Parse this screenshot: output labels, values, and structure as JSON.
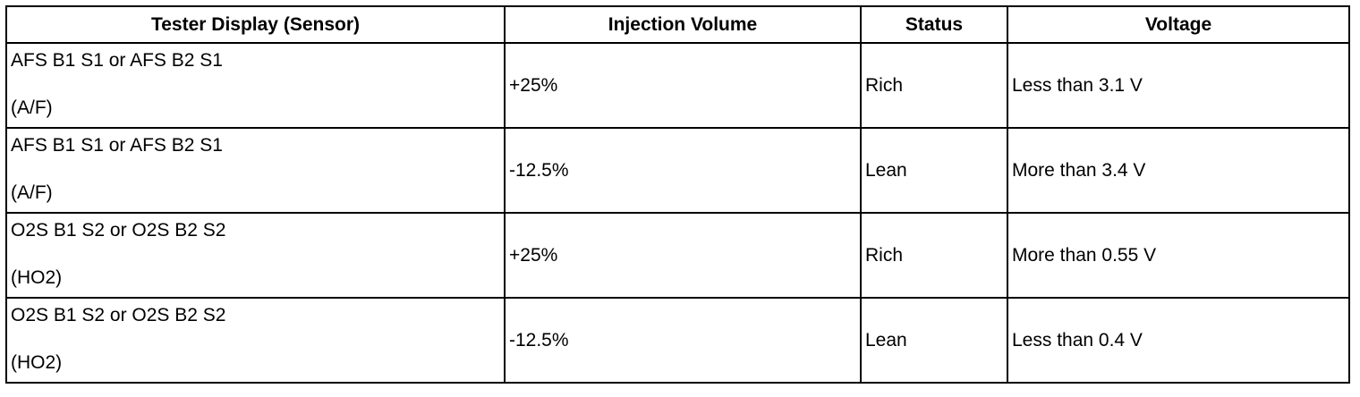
{
  "table": {
    "headers": {
      "sensor": "Tester Display (Sensor)",
      "injection": "Injection Volume",
      "status": "Status",
      "voltage": "Voltage"
    },
    "rows": [
      {
        "sensor": "AFS B1 S1 or AFS B2 S1",
        "sensor_type": "(A/F)",
        "injection": "+25%",
        "status": "Rich",
        "voltage": "Less than 3.1 V"
      },
      {
        "sensor": "AFS B1 S1 or AFS B2 S1",
        "sensor_type": "(A/F)",
        "injection": "-12.5%",
        "status": "Lean",
        "voltage": "More than 3.4 V"
      },
      {
        "sensor": "O2S B1 S2 or O2S B2 S2",
        "sensor_type": "(HO2)",
        "injection": "+25%",
        "status": "Rich",
        "voltage": "More than 0.55 V"
      },
      {
        "sensor": "O2S B1 S2 or O2S B2 S2",
        "sensor_type": "(HO2)",
        "injection": "-12.5%",
        "status": "Lean",
        "voltage": "Less than 0.4 V"
      }
    ]
  }
}
